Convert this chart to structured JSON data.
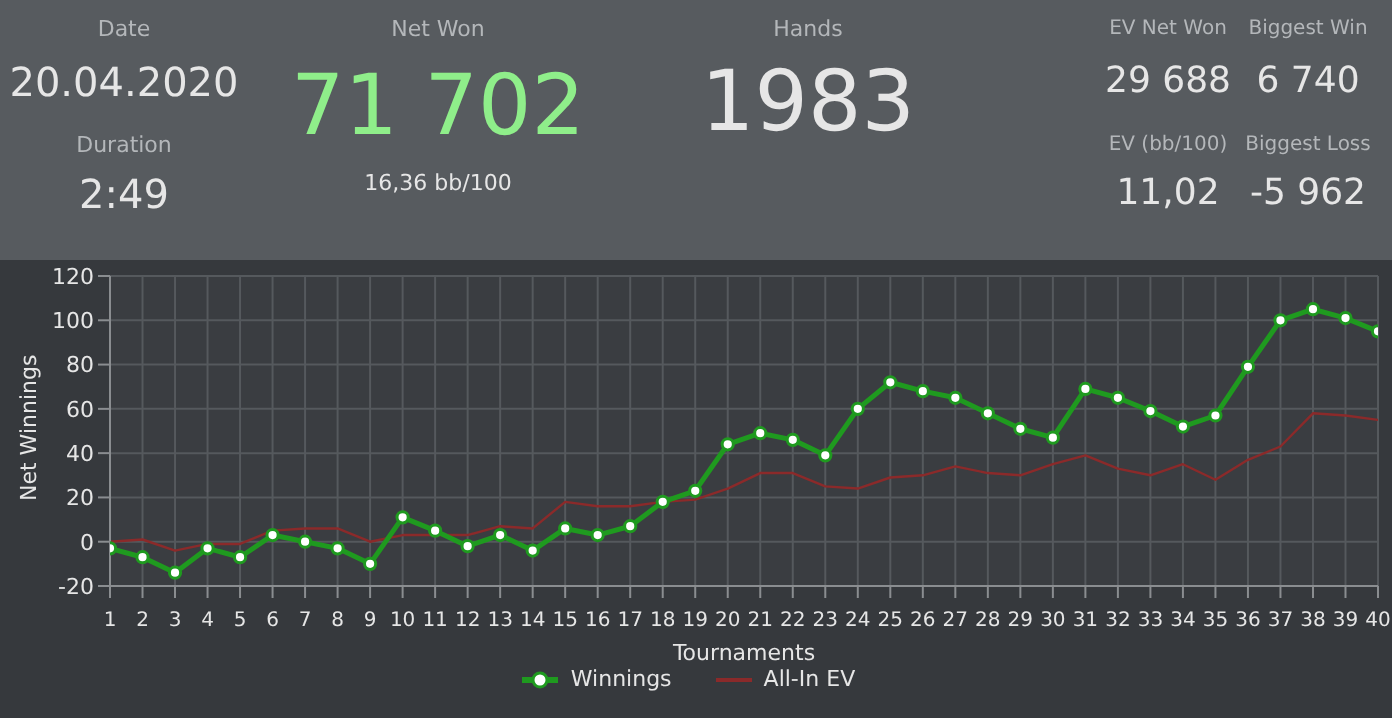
{
  "chart_data": {
    "type": "line",
    "ylabel": "Net Winnings",
    "xlabel": "Tournaments",
    "annotations": [
      "Date",
      "20.04.2020",
      "Duration",
      "2:49",
      "Net Won",
      "71 702",
      "16,36 bb/100",
      "Hands",
      "1983",
      "EV Net Won",
      "29 688",
      "Biggest Win",
      "6 740",
      "EV (bb/100)",
      "11,02",
      "Biggest Loss",
      "-5 962"
    ],
    "x": [
      1,
      2,
      3,
      4,
      5,
      6,
      7,
      8,
      9,
      10,
      11,
      12,
      13,
      14,
      15,
      16,
      17,
      18,
      19,
      20,
      21,
      22,
      23,
      24,
      25,
      26,
      27,
      28,
      29,
      30,
      31,
      32,
      33,
      34,
      35,
      36,
      37,
      38,
      39,
      40
    ],
    "xlim": [
      1,
      40
    ],
    "xticks": [
      1,
      2,
      3,
      4,
      5,
      6,
      7,
      8,
      9,
      10,
      11,
      12,
      13,
      14,
      15,
      16,
      17,
      18,
      19,
      20,
      21,
      22,
      23,
      24,
      25,
      26,
      27,
      28,
      29,
      30,
      31,
      32,
      33,
      34,
      35,
      36,
      37,
      38,
      39,
      40
    ],
    "ylim": [
      -20,
      120
    ],
    "yticks": [
      -20,
      0,
      20,
      40,
      60,
      80,
      100,
      120
    ],
    "grid": true,
    "legend": "bottom",
    "series": [
      {
        "name": "Winnings",
        "color": "#1f9a1f",
        "marker": "circle",
        "values": [
          -3,
          -7,
          -14,
          -3,
          -7,
          3,
          0,
          -3,
          -10,
          11,
          5,
          -2,
          3,
          -4,
          6,
          3,
          7,
          18,
          23,
          44,
          49,
          46,
          39,
          60,
          72,
          68,
          65,
          58,
          51,
          47,
          69,
          65,
          59,
          52,
          57,
          79,
          100,
          105,
          101,
          95
        ]
      },
      {
        "name": "All-In EV",
        "color": "#8b2a2a",
        "marker": "none",
        "values": [
          0,
          1,
          -4,
          -1,
          -1,
          5,
          6,
          6,
          0,
          3,
          3,
          3,
          7,
          6,
          18,
          16,
          16,
          18,
          19,
          24,
          31,
          31,
          25,
          24,
          29,
          30,
          34,
          31,
          30,
          35,
          39,
          33,
          30,
          35,
          28,
          37,
          43,
          58,
          57,
          55
        ]
      }
    ]
  }
}
